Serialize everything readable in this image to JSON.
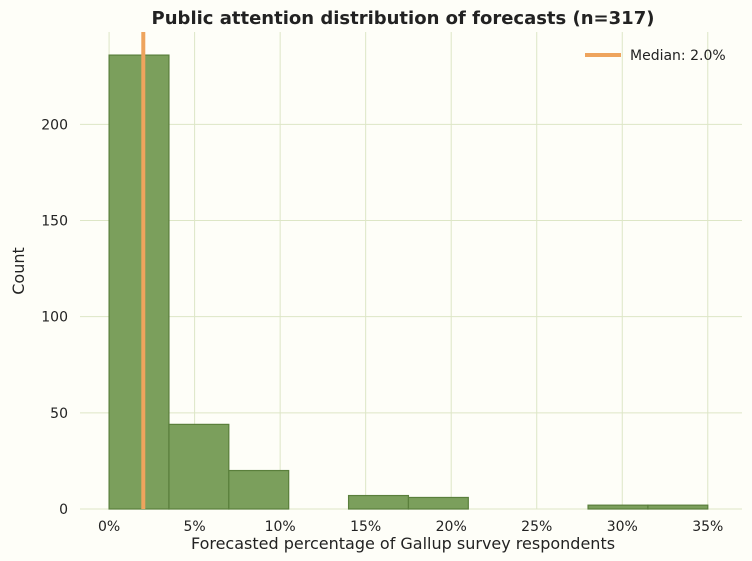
{
  "chart_data": {
    "type": "histogram",
    "title": "Public attention distribution of forecasts (n=317)",
    "xlabel": "Forecasted percentage of Gallup survey respondents",
    "ylabel": "Count",
    "xlim": [
      -0.017,
      0.37
    ],
    "ylim": [
      0,
      248
    ],
    "x_ticks": [
      0,
      0.05,
      0.1,
      0.15,
      0.2,
      0.25,
      0.3,
      0.35
    ],
    "x_tick_labels": [
      "0%",
      "5%",
      "10%",
      "15%",
      "20%",
      "25%",
      "30%",
      "35%"
    ],
    "y_ticks": [
      0,
      50,
      100,
      150,
      200
    ],
    "y_tick_labels": [
      "0",
      "50",
      "100",
      "150",
      "200"
    ],
    "bin_edges": [
      0,
      0.035,
      0.07,
      0.105,
      0.14,
      0.175,
      0.21,
      0.245,
      0.28,
      0.315,
      0.35
    ],
    "counts": [
      236,
      44,
      20,
      0,
      7,
      6,
      0,
      0,
      2,
      2
    ],
    "median": 0.02,
    "legend_label": "Median: 2.0%",
    "legend_position": "top-right",
    "grid": true,
    "colors": {
      "bar_fill": "#7b9f5c",
      "bar_edge": "#5a7f3c",
      "median_line": "#eea45d",
      "grid": "#dde6c6",
      "background": "#fefef8"
    }
  }
}
